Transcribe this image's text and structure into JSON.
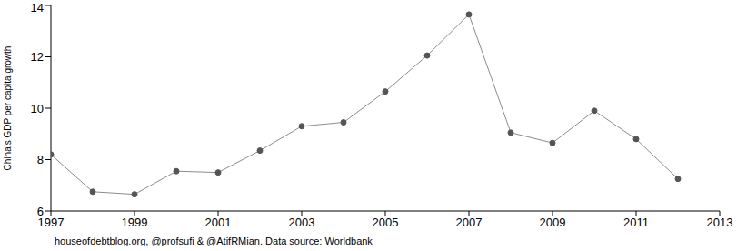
{
  "chart_data": {
    "type": "line",
    "y_label": "China's GDP per capita growth",
    "caption": "houseofdebtblog.org, @profsufi & @AtifRMian. Data source: Worldbank",
    "x": [
      1997,
      1998,
      1999,
      2000,
      2001,
      2002,
      2003,
      2004,
      2005,
      2006,
      2007,
      2008,
      2009,
      2010,
      2011,
      2012
    ],
    "values": [
      8.2,
      6.75,
      6.65,
      7.55,
      7.5,
      8.35,
      9.3,
      9.45,
      10.65,
      12.05,
      13.65,
      9.05,
      8.65,
      9.9,
      8.8,
      7.25
    ],
    "color": "#8c8c8c",
    "marker": "circle",
    "xlim": [
      1997,
      2013
    ],
    "xticks": [
      1997,
      1999,
      2001,
      2003,
      2005,
      2007,
      2009,
      2011,
      2013
    ],
    "ylim": [
      6,
      14
    ],
    "yticks": [
      6,
      8,
      10,
      12,
      14
    ],
    "grid": false
  }
}
